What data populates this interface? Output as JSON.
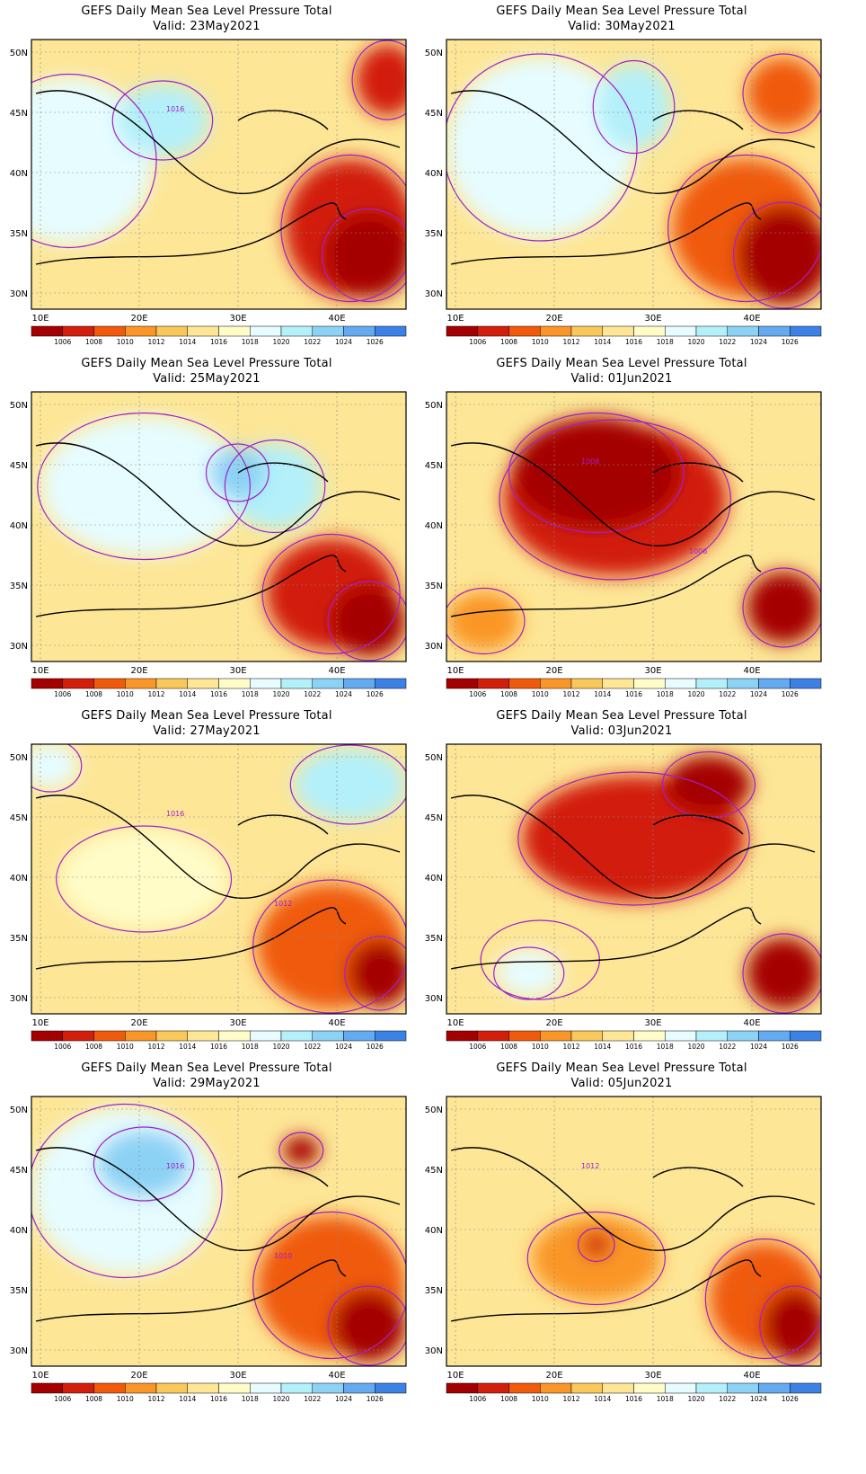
{
  "colorbar": {
    "levels": [
      "1006",
      "1008",
      "1010",
      "1012",
      "1014",
      "1016",
      "1018",
      "1020",
      "1022",
      "1024",
      "1026"
    ],
    "colors": [
      "#a50000",
      "#d21e0a",
      "#f05a0a",
      "#fa9628",
      "#fac85a",
      "#fde696",
      "#fffcc8",
      "#e6fcff",
      "#b4f0fa",
      "#8cd2f5",
      "#64aaf0",
      "#3c82e6"
    ]
  },
  "axes": {
    "lat_labels": [
      "50N",
      "45N",
      "40N",
      "35N",
      "30N"
    ],
    "lon_labels": [
      "10E",
      "20E",
      "30E",
      "40E"
    ]
  },
  "panels": [
    {
      "title": "GEFS Daily Mean Sea Level Pressure Total",
      "valid": "Valid: 23May2021",
      "labels": [
        "1016"
      ],
      "blobs": [
        [
          0.1,
          0.45,
          0.4,
          0.55,
          "#e6fcff"
        ],
        [
          0.35,
          0.3,
          0.2,
          0.2,
          "#b4f0fa"
        ],
        [
          0.85,
          0.7,
          0.3,
          0.45,
          "#d21e0a"
        ],
        [
          0.9,
          0.8,
          0.18,
          0.25,
          "#a50000"
        ],
        [
          0.95,
          0.15,
          0.12,
          0.2,
          "#d21e0a"
        ]
      ]
    },
    {
      "title": "GEFS Daily Mean Sea Level Pressure Total",
      "valid": "Valid: 30May2021",
      "labels": [],
      "blobs": [
        [
          0.25,
          0.4,
          0.45,
          0.6,
          "#e6fcff"
        ],
        [
          0.5,
          0.25,
          0.15,
          0.25,
          "#b4f0fa"
        ],
        [
          0.8,
          0.7,
          0.35,
          0.45,
          "#f05a0a"
        ],
        [
          0.9,
          0.8,
          0.2,
          0.3,
          "#a50000"
        ],
        [
          0.9,
          0.2,
          0.15,
          0.2,
          "#f05a0a"
        ]
      ]
    },
    {
      "title": "GEFS Daily Mean Sea Level Pressure Total",
      "valid": "Valid: 25May2021",
      "labels": [],
      "blobs": [
        [
          0.3,
          0.35,
          0.5,
          0.45,
          "#e6fcff"
        ],
        [
          0.65,
          0.35,
          0.2,
          0.25,
          "#b4f0fa"
        ],
        [
          0.55,
          0.3,
          0.1,
          0.12,
          "#8cd2f5"
        ],
        [
          0.8,
          0.75,
          0.3,
          0.35,
          "#d21e0a"
        ],
        [
          0.9,
          0.85,
          0.15,
          0.2,
          "#a50000"
        ]
      ]
    },
    {
      "title": "GEFS Daily Mean Sea Level Pressure Total",
      "valid": "Valid: 01Jun2021",
      "labels": [
        "1008",
        "1006"
      ],
      "blobs": [
        [
          0.45,
          0.4,
          0.55,
          0.5,
          "#d21e0a"
        ],
        [
          0.4,
          0.3,
          0.4,
          0.35,
          "#a50000"
        ],
        [
          0.9,
          0.8,
          0.15,
          0.2,
          "#a50000"
        ],
        [
          0.1,
          0.85,
          0.15,
          0.15,
          "#fa9628"
        ]
      ]
    },
    {
      "title": "GEFS Daily Mean Sea Level Pressure Total",
      "valid": "Valid: 27May2021",
      "labels": [
        "1016",
        "1012"
      ],
      "blobs": [
        [
          0.3,
          0.5,
          0.4,
          0.3,
          "#fffcc8"
        ],
        [
          0.85,
          0.15,
          0.25,
          0.2,
          "#b4f0fa"
        ],
        [
          0.8,
          0.75,
          0.35,
          0.4,
          "#f05a0a"
        ],
        [
          0.93,
          0.85,
          0.12,
          0.18,
          "#a50000"
        ],
        [
          0.05,
          0.08,
          0.1,
          0.1,
          "#e6fcff"
        ]
      ]
    },
    {
      "title": "GEFS Daily Mean Sea Level Pressure Total",
      "valid": "Valid: 03Jun2021",
      "labels": [],
      "blobs": [
        [
          0.5,
          0.35,
          0.55,
          0.4,
          "#d21e0a"
        ],
        [
          0.7,
          0.15,
          0.18,
          0.15,
          "#a50000"
        ],
        [
          0.25,
          0.8,
          0.25,
          0.2,
          "#fde696"
        ],
        [
          0.22,
          0.85,
          0.12,
          0.1,
          "#e6fcff"
        ],
        [
          0.9,
          0.85,
          0.15,
          0.2,
          "#a50000"
        ]
      ]
    },
    {
      "title": "GEFS Daily Mean Sea Level Pressure Total",
      "valid": "Valid: 29May2021",
      "labels": [
        "1016",
        "1010"
      ],
      "blobs": [
        [
          0.25,
          0.35,
          0.45,
          0.55,
          "#e6fcff"
        ],
        [
          0.3,
          0.25,
          0.2,
          0.18,
          "#8cd2f5"
        ],
        [
          0.8,
          0.7,
          0.35,
          0.45,
          "#f05a0a"
        ],
        [
          0.9,
          0.85,
          0.15,
          0.2,
          "#a50000"
        ],
        [
          0.72,
          0.2,
          0.05,
          0.04,
          "#a50000"
        ]
      ]
    },
    {
      "title": "GEFS Daily Mean Sea Level Pressure Total",
      "valid": "Valid: 05Jun2021",
      "labels": [
        "1012"
      ],
      "blobs": [
        [
          0.4,
          0.6,
          0.3,
          0.25,
          "#fa9628"
        ],
        [
          0.85,
          0.75,
          0.25,
          0.35,
          "#f05a0a"
        ],
        [
          0.93,
          0.85,
          0.12,
          0.2,
          "#a50000"
        ],
        [
          0.4,
          0.55,
          0.03,
          0.03,
          "#d21e0a"
        ]
      ]
    }
  ]
}
